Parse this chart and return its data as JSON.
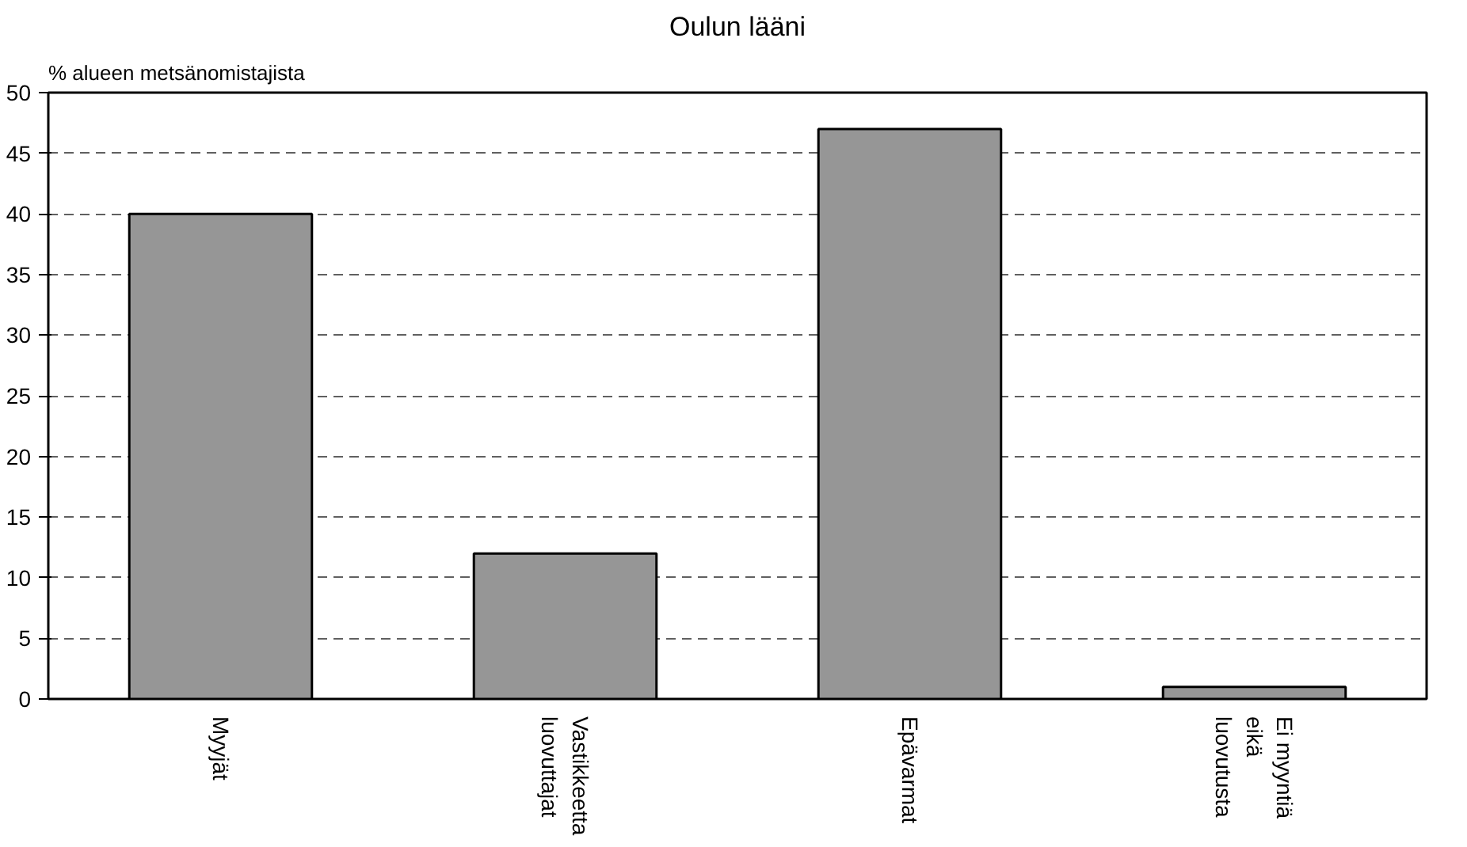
{
  "chart_data": {
    "type": "bar",
    "title": "Oulun lääni",
    "ylabel": "% alueen metsänomistajista",
    "categories": [
      "Myyjät",
      "Vastikkeetta\nluovuttajat",
      "Epävarmat",
      "Ei myyntiä\neikä\nluovutusta"
    ],
    "values": [
      40,
      12,
      47,
      1
    ],
    "color": "#969696",
    "ylim": [
      0,
      50
    ],
    "yticks": [
      0,
      5,
      10,
      15,
      20,
      25,
      30,
      35,
      40,
      45,
      50
    ],
    "grid": "y"
  }
}
